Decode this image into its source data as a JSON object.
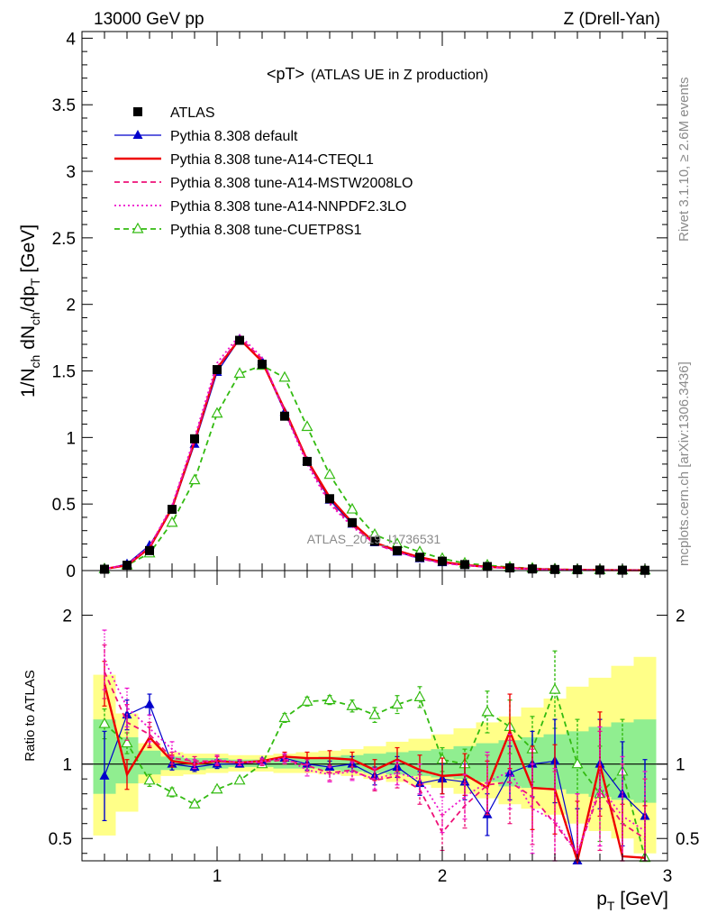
{
  "header": {
    "left": "13000 GeV pp",
    "right": "Z (Drell-Yan)"
  },
  "side_labels": {
    "rivet": "Rivet 3.1.10, ≥ 2.6M events",
    "mcplots": "mcplots.cern.ch [arXiv:1306.3436]"
  },
  "watermark": "ATLAS_2019_I1736531",
  "chart_data": [
    {
      "type": "line",
      "title": "<pT> (ATLAS UE in Z production)",
      "title_main": "<pT>",
      "title_sub": "(ATLAS UE in Z production)",
      "ylabel": "1/N_ch dN_ch/dp_T [GeV]",
      "ylim": [
        0,
        4.05
      ],
      "xlim": [
        0.4,
        3.0
      ],
      "yticks": [
        "0",
        "0.5",
        "1",
        "1.5",
        "2",
        "2.5",
        "3",
        "3.5",
        "4"
      ],
      "legend_position": "top-left",
      "x": [
        0.5,
        0.6,
        0.7,
        0.8,
        0.9,
        1.0,
        1.1,
        1.2,
        1.3,
        1.4,
        1.5,
        1.6,
        1.7,
        1.8,
        1.9,
        2.0,
        2.1,
        2.2,
        2.3,
        2.4,
        2.5,
        2.6,
        2.7,
        2.8,
        2.9
      ],
      "series": [
        {
          "name": "ATLAS",
          "color": "#000000",
          "style": "markers-square",
          "values": [
            0.01,
            0.04,
            0.15,
            0.46,
            0.99,
            1.51,
            1.73,
            1.55,
            1.16,
            0.82,
            0.54,
            0.36,
            0.22,
            0.15,
            0.1,
            0.07,
            0.045,
            0.03,
            0.02,
            0.012,
            0.008,
            0.006,
            0.004,
            0.003,
            0.002
          ]
        },
        {
          "name": "Pythia 8.308 default",
          "color": "#0000cc",
          "style": "line-triangles",
          "values": [
            0.01,
            0.05,
            0.19,
            0.46,
            0.95,
            1.49,
            1.74,
            1.57,
            1.19,
            0.82,
            0.53,
            0.35,
            0.21,
            0.14,
            0.09,
            0.06,
            0.04,
            0.027,
            0.018,
            0.012,
            0.008,
            0.005,
            0.004,
            0.003,
            0.002
          ]
        },
        {
          "name": "Pythia 8.308 tune-A14-CTEQL1",
          "color": "#ee0000",
          "style": "solid",
          "values": [
            0.012,
            0.04,
            0.17,
            0.47,
            0.97,
            1.52,
            1.74,
            1.57,
            1.21,
            0.83,
            0.55,
            0.36,
            0.21,
            0.15,
            0.1,
            0.065,
            0.042,
            0.028,
            0.02,
            0.012,
            0.008,
            0.005,
            0.004,
            0.003,
            0.002
          ]
        },
        {
          "name": "Pythia 8.308 tune-A14-MSTW2008LO",
          "color": "#ee1177",
          "style": "dashed",
          "values": [
            0.012,
            0.045,
            0.18,
            0.48,
            0.98,
            1.53,
            1.75,
            1.59,
            1.2,
            0.82,
            0.51,
            0.34,
            0.2,
            0.14,
            0.09,
            0.055,
            0.04,
            0.025,
            0.018,
            0.011,
            0.008,
            0.005,
            0.003,
            0.003,
            0.002
          ]
        },
        {
          "name": "Pythia 8.308 tune-A14-NNPDF2.3LO",
          "color": "#ee11cc",
          "style": "dotted",
          "values": [
            0.012,
            0.045,
            0.18,
            0.49,
            1.0,
            1.56,
            1.77,
            1.6,
            1.19,
            0.8,
            0.5,
            0.33,
            0.2,
            0.14,
            0.09,
            0.055,
            0.04,
            0.025,
            0.018,
            0.011,
            0.008,
            0.005,
            0.003,
            0.003,
            0.002
          ]
        },
        {
          "name": "Pythia 8.308 tune-CUETP8S1",
          "color": "#33bb11",
          "style": "dashed-open-triangles",
          "values": [
            0.012,
            0.04,
            0.13,
            0.36,
            0.68,
            1.18,
            1.48,
            1.54,
            1.45,
            1.08,
            0.72,
            0.46,
            0.27,
            0.2,
            0.14,
            0.09,
            0.055,
            0.04,
            0.025,
            0.017,
            0.011,
            0.007,
            0.005,
            0.003,
            0.002
          ]
        }
      ]
    },
    {
      "type": "line",
      "ylabel": "Ratio to ATLAS",
      "xlabel": "p_T [GeV]",
      "ylim": [
        0.35,
        2.3
      ],
      "xlim": [
        0.4,
        3.0
      ],
      "yticks": [
        "0.5",
        "1",
        "2"
      ],
      "xticks": [
        "1",
        "2",
        "3"
      ],
      "x": [
        0.5,
        0.6,
        0.7,
        0.8,
        0.9,
        1.0,
        1.1,
        1.2,
        1.3,
        1.4,
        1.5,
        1.6,
        1.7,
        1.8,
        1.9,
        2.0,
        2.1,
        2.2,
        2.3,
        2.4,
        2.5,
        2.6,
        2.7,
        2.8,
        2.9
      ],
      "band_inner": [
        [
          0.8,
          1.3
        ],
        [
          0.87,
          1.18
        ],
        [
          0.93,
          1.09
        ],
        [
          0.96,
          1.05
        ],
        [
          0.96,
          1.04
        ],
        [
          0.97,
          1.04
        ],
        [
          0.98,
          1.03
        ],
        [
          0.98,
          1.03
        ],
        [
          0.97,
          1.04
        ],
        [
          0.97,
          1.04
        ],
        [
          0.96,
          1.05
        ],
        [
          0.95,
          1.06
        ],
        [
          0.94,
          1.07
        ],
        [
          0.93,
          1.08
        ],
        [
          0.92,
          1.09
        ],
        [
          0.91,
          1.1
        ],
        [
          0.9,
          1.12
        ],
        [
          0.88,
          1.14
        ],
        [
          0.85,
          1.16
        ],
        [
          0.84,
          1.18
        ],
        [
          0.83,
          1.2
        ],
        [
          0.8,
          1.22
        ],
        [
          0.78,
          1.25
        ],
        [
          0.76,
          1.28
        ],
        [
          0.74,
          1.3
        ]
      ],
      "band_outer": [
        [
          0.52,
          1.6
        ],
        [
          0.68,
          1.34
        ],
        [
          0.87,
          1.14
        ],
        [
          0.92,
          1.08
        ],
        [
          0.93,
          1.07
        ],
        [
          0.94,
          1.07
        ],
        [
          0.95,
          1.06
        ],
        [
          0.95,
          1.06
        ],
        [
          0.94,
          1.07
        ],
        [
          0.94,
          1.08
        ],
        [
          0.93,
          1.09
        ],
        [
          0.92,
          1.1
        ],
        [
          0.9,
          1.12
        ],
        [
          0.88,
          1.15
        ],
        [
          0.86,
          1.17
        ],
        [
          0.84,
          1.2
        ],
        [
          0.8,
          1.24
        ],
        [
          0.77,
          1.28
        ],
        [
          0.73,
          1.32
        ],
        [
          0.7,
          1.38
        ],
        [
          0.66,
          1.44
        ],
        [
          0.6,
          1.52
        ],
        [
          0.55,
          1.58
        ],
        [
          0.5,
          1.66
        ],
        [
          0.4,
          1.72
        ]
      ],
      "series": [
        {
          "name": "Pythia 8.308 default",
          "color": "#0000cc",
          "style": "line-triangles",
          "values": [
            0.92,
            1.33,
            1.4,
            1.0,
            0.98,
            1.0,
            1.0,
            1.02,
            1.04,
            1.0,
            0.98,
            1.0,
            0.92,
            0.98,
            0.87,
            0.9,
            0.88,
            0.66,
            0.94,
            1.0,
            1.02,
            0.35,
            1.0,
            0.8,
            0.65
          ],
          "err": [
            0.3,
            0.1,
            0.07,
            0.04,
            0.03,
            0.03,
            0.02,
            0.02,
            0.03,
            0.04,
            0.04,
            0.05,
            0.06,
            0.07,
            0.08,
            0.1,
            0.12,
            0.14,
            0.18,
            0.22,
            0.28,
            0.35,
            0.3,
            0.35,
            0.38
          ]
        },
        {
          "name": "Pythia 8.308 tune-A14-CTEQL1",
          "color": "#ee0000",
          "style": "solid",
          "values": [
            1.54,
            0.93,
            1.18,
            1.02,
            1.0,
            1.02,
            1.01,
            1.02,
            1.05,
            1.04,
            1.04,
            1.03,
            0.96,
            1.03,
            0.96,
            0.92,
            0.93,
            0.84,
            1.22,
            0.84,
            0.83,
            0.35,
            1.0,
            0.38,
            0.37
          ],
          "err": [
            0.15,
            0.1,
            0.07,
            0.04,
            0.03,
            0.03,
            0.02,
            0.02,
            0.03,
            0.04,
            0.05,
            0.05,
            0.07,
            0.08,
            0.1,
            0.12,
            0.14,
            0.18,
            0.25,
            0.28,
            0.3,
            0.4,
            0.35,
            0.35,
            0.35
          ]
        },
        {
          "name": "Pythia 8.308 tune-A14-MSTW2008LO",
          "color": "#ee1177",
          "style": "dashed",
          "values": [
            1.62,
            1.28,
            1.2,
            1.04,
            1.02,
            1.02,
            1.01,
            1.01,
            1.03,
            0.99,
            0.94,
            0.96,
            0.89,
            0.92,
            0.83,
            0.54,
            0.72,
            0.86,
            0.88,
            0.78,
            0.6,
            0.4,
            0.82,
            0.6,
            0.5
          ],
          "err": [
            0.18,
            0.12,
            0.08,
            0.04,
            0.03,
            0.03,
            0.02,
            0.02,
            0.03,
            0.04,
            0.05,
            0.06,
            0.07,
            0.08,
            0.1,
            0.12,
            0.15,
            0.2,
            0.28,
            0.32,
            0.35,
            0.4,
            0.4,
            0.4,
            0.4
          ]
        },
        {
          "name": "Pythia 8.308 tune-A14-NNPDF2.3LO",
          "color": "#ee11cc",
          "style": "dotted",
          "values": [
            1.7,
            1.38,
            1.24,
            1.1,
            1.0,
            1.03,
            1.01,
            1.02,
            1.04,
            0.96,
            0.93,
            0.95,
            0.9,
            0.94,
            0.9,
            0.66,
            0.78,
            0.88,
            0.95,
            0.7,
            0.62,
            0.4,
            0.85,
            0.65,
            0.55
          ],
          "err": [
            0.2,
            0.13,
            0.09,
            0.05,
            0.03,
            0.03,
            0.02,
            0.02,
            0.03,
            0.04,
            0.05,
            0.06,
            0.07,
            0.08,
            0.1,
            0.12,
            0.15,
            0.2,
            0.25,
            0.3,
            0.35,
            0.4,
            0.4,
            0.4,
            0.4
          ]
        },
        {
          "name": "Pythia 8.308 tune-CUETP8S1",
          "color": "#33bb11",
          "style": "dashed-open-triangles",
          "values": [
            1.27,
            1.14,
            0.89,
            0.81,
            0.73,
            0.83,
            0.89,
            1.0,
            1.31,
            1.42,
            1.43,
            1.39,
            1.33,
            1.4,
            1.45,
            1.03,
            1.0,
            1.35,
            1.25,
            1.1,
            1.5,
            1.0,
            0.8,
            0.95,
            0.37
          ],
          "err": [
            0.1,
            0.07,
            0.04,
            0.03,
            0.02,
            0.02,
            0.02,
            0.02,
            0.03,
            0.03,
            0.03,
            0.04,
            0.05,
            0.06,
            0.07,
            0.08,
            0.1,
            0.14,
            0.18,
            0.22,
            0.26,
            0.3,
            0.32,
            0.35,
            0.38
          ]
        }
      ]
    }
  ]
}
